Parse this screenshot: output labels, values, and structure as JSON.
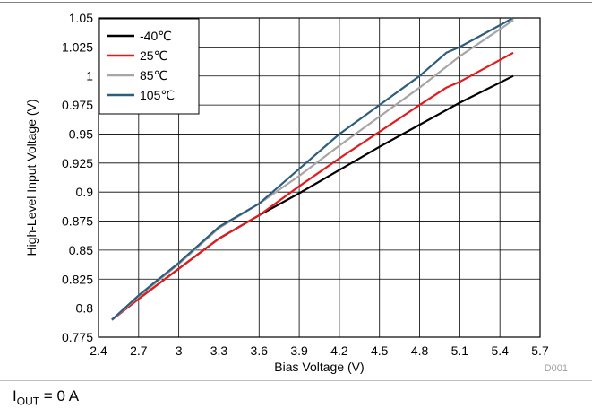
{
  "chart_data": {
    "type": "line",
    "title": "",
    "xlabel": "Bias Voltage (V)",
    "ylabel": "High-Level Input Voltage (V)",
    "xlim": [
      2.4,
      5.7
    ],
    "ylim": [
      0.775,
      1.05
    ],
    "xticks": [
      2.4,
      2.7,
      3,
      3.3,
      3.6,
      3.9,
      4.2,
      4.5,
      4.8,
      5.1,
      5.4,
      5.7
    ],
    "xtick_labels": [
      "2.4",
      "2.7",
      "3",
      "3.3",
      "3.6",
      "3.9",
      "4.2",
      "4.5",
      "4.8",
      "5.1",
      "5.4",
      "5.7"
    ],
    "yticks": [
      0.775,
      0.8,
      0.825,
      0.85,
      0.875,
      0.9,
      0.925,
      0.95,
      0.975,
      1,
      1.025,
      1.05
    ],
    "ytick_labels": [
      "0.775",
      "0.8",
      "0.825",
      "0.85",
      "0.875",
      "0.9",
      "0.925",
      "0.95",
      "0.975",
      "1",
      "1.025",
      "1.05"
    ],
    "grid": true,
    "legend_position": "top-left",
    "series": [
      {
        "name": "-40℃",
        "color": "#000000",
        "x": [
          2.5,
          2.7,
          3.0,
          3.3,
          3.6,
          3.9,
          4.2,
          4.5,
          4.8,
          5.1,
          5.5
        ],
        "y": [
          0.79,
          0.808,
          0.834,
          0.86,
          0.88,
          0.899,
          0.919,
          0.939,
          0.958,
          0.977,
          1.0
        ]
      },
      {
        "name": "25℃",
        "color": "#e41a1c",
        "x": [
          2.5,
          2.7,
          3.0,
          3.3,
          3.6,
          3.9,
          4.2,
          4.5,
          4.8,
          5.0,
          5.1,
          5.5
        ],
        "y": [
          0.79,
          0.808,
          0.834,
          0.86,
          0.88,
          0.905,
          0.929,
          0.952,
          0.975,
          0.99,
          0.995,
          1.02
        ]
      },
      {
        "name": "85℃",
        "color": "#a6a6a6",
        "x": [
          2.5,
          2.7,
          3.0,
          3.3,
          3.6,
          3.9,
          4.2,
          4.5,
          4.8,
          5.1,
          5.5
        ],
        "y": [
          0.79,
          0.81,
          0.838,
          0.869,
          0.89,
          0.914,
          0.94,
          0.965,
          0.99,
          1.017,
          1.048
        ]
      },
      {
        "name": "105℃",
        "color": "#2e5e7e",
        "x": [
          2.5,
          2.7,
          3.0,
          3.3,
          3.6,
          3.9,
          4.2,
          4.5,
          4.8,
          5.0,
          5.1,
          5.5
        ],
        "y": [
          0.79,
          0.811,
          0.839,
          0.87,
          0.89,
          0.92,
          0.95,
          0.975,
          1.0,
          1.02,
          1.025,
          1.05
        ]
      }
    ]
  },
  "figure_id": "D001",
  "footnote": {
    "symbol": "I",
    "subscript": "OUT",
    "rest": " = 0 A"
  }
}
